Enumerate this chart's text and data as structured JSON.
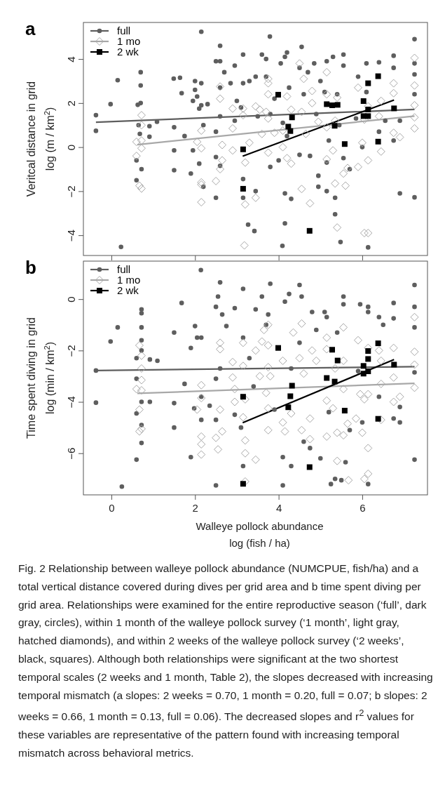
{
  "chart_data": [
    {
      "type": "scatter",
      "ylabel": "Veritcal distance in grid\nlog (m / km$^{2}$)",
      "xlim": [
        -0.67,
        7.56
      ],
      "ylim": [
        -4.92,
        5.66
      ],
      "xticks": [
        0,
        2,
        4,
        6
      ],
      "yticks": [
        -4,
        -2,
        0,
        2,
        4
      ],
      "tick_labels": "y",
      "legend": "top left",
      "annotations": [
        "a"
      ],
      "series": [
        {
          "name": "full",
          "color": "#5e5e5e",
          "marker": "circle",
          "x": [
            -0.37,
            -0.37,
            0.15,
            -0.02,
            0.63,
            0.65,
            0.6,
            0.6,
            0.7,
            0.7,
            0.7,
            0.72,
            0.68,
            0.91,
            0.91,
            1.09,
            1.49,
            1.5,
            1.5,
            1.5,
            1.64,
            1.68,
            1.75,
            1.9,
            1.95,
            1.95,
            2.0,
            2.0,
            2.05,
            2.1,
            2.1,
            2.15,
            2.15,
            2.15,
            2.2,
            2.2,
            2.3,
            2.5,
            2.5,
            2.5,
            2.5,
            2.6,
            2.6,
            2.6,
            2.6,
            2.6,
            2.7,
            2.85,
            2.95,
            2.95,
            3.0,
            3.1,
            3.15,
            3.15,
            3.15,
            3.15,
            3.27,
            3.3,
            3.45,
            3.45,
            3.42,
            3.5,
            3.6,
            3.7,
            3.7,
            3.79,
            3.8,
            3.8,
            3.9,
            4.0,
            4.05,
            4.1,
            4.15,
            4.15,
            4.2,
            4.2,
            4.25,
            4.3,
            4.15,
            4.5,
            4.5,
            4.55,
            4.6,
            4.7,
            4.75,
            4.85,
            4.9,
            4.95,
            4.95,
            5.0,
            5.1,
            5.15,
            5.15,
            5.15,
            5.2,
            5.3,
            5.35,
            5.35,
            5.4,
            5.45,
            5.55,
            5.55,
            5.55,
            5.7,
            5.85,
            5.9,
            6.0,
            6.1,
            6.1,
            6.14,
            5.48,
            4.09,
            0.23,
            6.4,
            6.4,
            6.55,
            6.75,
            6.75,
            6.75,
            6.9,
            6.9,
            7.25,
            7.25,
            7.25,
            7.25,
            7.25
          ],
          "values": [
            1.45,
            0.74,
            3.04,
            1.95,
            1.92,
            1.0,
            -0.6,
            -1.5,
            3.4,
            2.8,
            2.0,
            -1.0,
            0.6,
            0.95,
            0.47,
            1.15,
            3.11,
            0.9,
            -0.15,
            -1.05,
            3.15,
            2.45,
            0.5,
            -1.2,
            2.1,
            -0.15,
            3.0,
            2.6,
            2.3,
            1.75,
            -0.75,
            5.24,
            2.9,
            1.9,
            1.0,
            -1.8,
            1.95,
            3.9,
            -2.3,
            0.7,
            -0.45,
            4.6,
            3.9,
            2.7,
            1.4,
            -0.85,
            3.4,
            2.9,
            3.7,
            1.2,
            2.1,
            1.8,
            4.2,
            2.9,
            -1.45,
            -2.3,
            -3.52,
            3.0,
            3.2,
            -2.0,
            -3.81,
            1.4,
            4.2,
            3.2,
            4.0,
            5.02,
            1.5,
            -0.9,
            2.2,
            -0.6,
            3.8,
            1.1,
            4.1,
            -2.1,
            4.3,
            0.5,
            2.7,
            -2.35,
            -3.46,
            3.6,
            -0.35,
            4.55,
            2.4,
            3.4,
            -0.4,
            3.8,
            1.5,
            -1.3,
            -1.8,
            3.0,
            2.5,
            3.9,
            -0.7,
            -2.0,
            0.3,
            4.1,
            -2.3,
            -3.05,
            2.4,
            1.0,
            4.2,
            3.7,
            -0.5,
            -1.0,
            1.3,
            3.2,
            0.0,
            3.8,
            2.5,
            -4.55,
            -4.31,
            -4.48,
            -4.53,
            3.85,
            0.7,
            1.2,
            4.15,
            3.6,
            0.3,
            1.2,
            -2.1,
            4.9,
            3.8,
            3.3,
            2.4,
            -2.28
          ]
        },
        {
          "name": "1 mo",
          "color": "#a8a8a8",
          "marker": "diamond",
          "x": [
            0.6,
            0.6,
            0.72,
            0.72,
            0.72,
            0.72,
            0.67,
            0.72,
            2.05,
            2.15,
            2.15,
            2.15,
            2.15,
            2.15,
            2.5,
            2.6,
            2.6,
            2.65,
            2.65,
            2.6,
            2.9,
            2.9,
            2.9,
            3.15,
            3.15,
            3.2,
            3.2,
            3.18,
            3.3,
            3.45,
            3.45,
            3.55,
            3.6,
            3.7,
            3.75,
            3.75,
            3.75,
            3.75,
            3.75,
            3.9,
            4.1,
            4.1,
            4.2,
            4.2,
            4.3,
            4.3,
            4.5,
            4.55,
            4.55,
            4.6,
            4.65,
            4.75,
            4.8,
            4.8,
            4.95,
            5.15,
            5.15,
            5.15,
            5.15,
            5.3,
            5.35,
            5.35,
            5.4,
            5.4,
            5.55,
            5.6,
            5.65,
            5.9,
            5.9,
            6.0,
            6.05,
            6.14,
            6.14,
            6.05,
            6.14,
            6.4,
            6.45,
            6.45,
            6.75,
            6.75,
            6.75,
            6.9,
            7.25,
            7.25,
            7.25,
            7.25,
            7.25
          ],
          "values": [
            0.24,
            -0.4,
            1.45,
            1.0,
            0.3,
            -0.05,
            -1.75,
            -1.88,
            0.24,
            0.75,
            -0.05,
            -1.6,
            -1.7,
            -2.5,
            -1.54,
            2.75,
            2.2,
            0.1,
            -0.6,
            -1.0,
            1.75,
            0.85,
            -0.15,
            1.75,
            1.45,
            -0.7,
            -2.6,
            -4.46,
            0.2,
            1.85,
            -2.3,
            1.7,
            0.6,
            1.6,
            2.9,
            3.1,
            2.4,
            1.3,
            -0.25,
            0.65,
            0.0,
            0.75,
            2.3,
            -0.5,
            1.7,
            -0.75,
            3.8,
            1.6,
            -1.9,
            3.1,
            0.6,
            -2.55,
            2.55,
            2.0,
            1.15,
            3.4,
            2.4,
            0.9,
            -0.55,
            -0.15,
            1.2,
            -1.65,
            -3.65,
            2.25,
            -1.2,
            -1.75,
            -0.95,
            -0.9,
            2.7,
            0.2,
            1.25,
            -0.6,
            1.85,
            -3.9,
            -3.9,
            1.4,
            2.1,
            -0.2,
            2.9,
            2.45,
            0.65,
            0.45,
            4.05,
            2.8,
            1.9,
            1.35,
            0.85
          ]
        },
        {
          "name": "2 wk",
          "color": "#000000",
          "marker": "square",
          "x": [
            3.15,
            3.15,
            3.99,
            4.23,
            4.28,
            4.32,
            4.74,
            5.15,
            5.28,
            5.41,
            5.34,
            5.58,
            6.03,
            6.14,
            6.14,
            6.03,
            6.14,
            6.38,
            6.38,
            6.76
          ],
          "values": [
            -0.1,
            -1.89,
            2.38,
            0.93,
            0.73,
            1.35,
            -3.8,
            1.95,
            1.9,
            1.92,
            0.97,
            0.14,
            2.09,
            2.9,
            1.71,
            1.41,
            1.41,
            3.22,
            0.25,
            1.76
          ]
        },
        {
          "type": "line",
          "color": "#5e5e5e",
          "x": [
            -0.37,
            7.25
          ],
          "values": [
            1.13,
            1.71
          ]
        },
        {
          "type": "line",
          "color": "#a8a8a8",
          "x": [
            0.62,
            7.25
          ],
          "values": [
            0.11,
            1.41
          ]
        },
        {
          "type": "line",
          "color": "#000000",
          "x": [
            3.14,
            6.76
          ],
          "values": [
            -0.41,
            2.14
          ]
        }
      ]
    },
    {
      "type": "scatter",
      "xlabel": "Walleye pollock abundance\nlog (fish / ha)",
      "ylabel": "Time spent diving in grid\nlog (min / km$^{2}$)",
      "xlim": [
        -0.67,
        7.56
      ],
      "ylim": [
        -7.62,
        1.48
      ],
      "xticks": [
        0,
        2,
        4,
        6
      ],
      "yticks": [
        -6,
        -4,
        -2,
        0
      ],
      "legend": "top left",
      "annotations": [
        "b",
        "Fig. 2  Relationship between walleye pollock abundance (NUMCPUE, fish/ha) and a total vertical distance covered during dives per grid area and b time spent diving per grid area. Relationships were examined for the entire reproductive season (‘full’, dark gray, circles), within 1 month of the walleye pollock survey (‘1 month’, light gray, hatched diamonds), and within 2 weeks of the walleye pollock survey (‘2 weeks’, black, squares). Although both relationships were significant at the two shortest temporal scales (2 weeks and 1 month, Table 2), the slopes decreased with increasing temporal mismatch (a slopes: 2 weeks = 0.70, 1 month = 0.20, full = 0.07; b slopes: 2 weeks = 0.66, 1 month = 0.13, full = 0.06). The decreased slopes and r$^{2}$ values for these variables are representative of the pattern found with increasing temporal mismatch across behavioral metrics."
      ],
      "series": [
        {
          "name": "full",
          "color": "#5e5e5e",
          "marker": "circle",
          "x": [
            -0.37,
            -0.37,
            0.15,
            -0.02,
            0.25,
            0.6,
            0.6,
            0.6,
            0.6,
            0.72,
            0.72,
            0.72,
            0.72,
            0.72,
            0.72,
            0.72,
            0.72,
            0.92,
            0.92,
            1.1,
            1.5,
            1.5,
            1.5,
            1.68,
            1.75,
            1.9,
            1.9,
            1.98,
            2.0,
            2.05,
            2.14,
            2.15,
            2.15,
            2.15,
            2.35,
            2.5,
            2.5,
            2.5,
            2.5,
            2.55,
            2.6,
            2.6,
            2.65,
            2.75,
            2.95,
            2.95,
            3.1,
            3.15,
            3.15,
            3.15,
            3.3,
            3.4,
            3.45,
            3.6,
            3.7,
            3.75,
            3.8,
            3.9,
            4.1,
            4.1,
            4.15,
            4.25,
            4.3,
            4.3,
            4.5,
            4.5,
            4.55,
            4.6,
            4.75,
            4.8,
            4.9,
            5.0,
            5.1,
            5.15,
            5.2,
            5.25,
            5.35,
            5.4,
            5.5,
            5.55,
            5.55,
            5.6,
            5.7,
            5.9,
            5.95,
            6.0,
            6.14,
            6.14,
            6.14,
            6.4,
            6.4,
            6.5,
            6.75,
            6.75,
            6.75,
            6.9,
            6.9,
            7.25,
            7.25,
            7.25,
            7.25,
            7.25
          ],
          "values": [
            -2.78,
            -4.03,
            -1.1,
            -1.65,
            -7.3,
            -2.3,
            -3.1,
            -4.45,
            -6.25,
            -0.4,
            -0.55,
            -1.1,
            -1.6,
            -2.0,
            -4.0,
            -4.9,
            -5.6,
            -2.35,
            -4.0,
            -2.4,
            -1.3,
            -4.05,
            -5.0,
            -0.15,
            -3.3,
            -1.9,
            -6.15,
            -4.25,
            -1.05,
            -1.5,
            1.13,
            -1.5,
            -3.8,
            -4.7,
            -4.15,
            -0.3,
            -3.1,
            -7.25,
            -4.7,
            0.1,
            0.65,
            -2.7,
            -0.6,
            -1.05,
            -0.35,
            -4.5,
            -5.0,
            0.4,
            -1.5,
            -6.5,
            -2.3,
            -3.4,
            -0.4,
            0.1,
            -1.0,
            -0.6,
            0.6,
            -4.3,
            -7.25,
            -6.15,
            -0.1,
            0.2,
            -2.7,
            -6.5,
            0.55,
            -1.7,
            0.1,
            -5.55,
            -5.8,
            -0.5,
            -1.2,
            -6.2,
            -0.5,
            -0.7,
            -4.4,
            -7.2,
            -7.0,
            -1.3,
            -7.05,
            0.1,
            -0.2,
            -6.35,
            -5.1,
            -2.8,
            -0.2,
            -4.8,
            -0.3,
            -0.5,
            -7.2,
            -0.7,
            -3.8,
            -1.0,
            -0.15,
            -0.75,
            -4.65,
            -4.8,
            -4.2,
            0.55,
            -0.3,
            -1.1,
            -2.85,
            -6.25
          ]
        },
        {
          "name": "1 mo",
          "color": "#a8a8a8",
          "marker": "diamond",
          "x": [
            0.6,
            0.67,
            0.72,
            0.72,
            0.72,
            0.72,
            0.67,
            0.67,
            0.72,
            2.05,
            2.15,
            2.15,
            2.15,
            2.15,
            2.15,
            2.5,
            2.6,
            2.6,
            2.6,
            2.55,
            2.65,
            2.9,
            2.9,
            2.95,
            2.95,
            3.15,
            3.15,
            3.15,
            3.2,
            3.2,
            3.2,
            3.2,
            3.45,
            3.45,
            3.55,
            3.6,
            3.65,
            3.7,
            3.75,
            3.75,
            3.75,
            3.75,
            3.75,
            3.8,
            4.1,
            4.1,
            4.15,
            4.3,
            4.35,
            4.5,
            4.55,
            4.55,
            4.6,
            4.75,
            4.75,
            4.8,
            4.9,
            5.15,
            5.15,
            5.15,
            5.15,
            5.3,
            5.35,
            5.4,
            5.4,
            5.55,
            5.55,
            5.55,
            5.55,
            5.65,
            5.85,
            5.9,
            5.95,
            6.0,
            6.05,
            6.14,
            6.14,
            6.14,
            6.05,
            6.14,
            6.4,
            6.45,
            6.45,
            6.45,
            6.75,
            6.75,
            6.75,
            6.9,
            7.25,
            7.25,
            7.25,
            7.25,
            5.67
          ],
          "values": [
            -3.5,
            -1.8,
            -2.2,
            -2.7,
            -3.15,
            -3.55,
            -4.3,
            -5.15,
            -5.05,
            -4.3,
            -3.35,
            -3.85,
            -5.35,
            -5.65,
            -6.05,
            -5.4,
            -1.7,
            -1.95,
            -4.3,
            -5.85,
            -5.15,
            -2.45,
            -3.05,
            -3.5,
            -4.0,
            -1.7,
            -2.6,
            -4.6,
            -3.9,
            -5.5,
            -6.0,
            -7.1,
            -6.25,
            -2.0,
            -3.0,
            -1.65,
            -1.2,
            -3.65,
            -1.8,
            -2.65,
            -4.25,
            -5.1,
            -1.0,
            -3.0,
            -2.4,
            -4.8,
            -5.15,
            -4.45,
            -1.3,
            -2.3,
            -0.95,
            -5.1,
            -2.9,
            -4.65,
            -5.45,
            -2.0,
            -2.4,
            -1.5,
            -1.95,
            -3.95,
            -5.35,
            -4.25,
            -2.7,
            -5.2,
            -6.3,
            -1.1,
            -2.4,
            -3.5,
            -5.3,
            -4.85,
            -4.65,
            -1.6,
            -3.7,
            -5.2,
            -3.9,
            -1.9,
            -3.7,
            -5.8,
            -7.0,
            -6.8,
            -2.0,
            -2.4,
            -3.3,
            -4.7,
            -1.9,
            -3.05,
            -4.0,
            -3.8,
            -0.7,
            -2.05,
            -2.55,
            -3.45,
            -7.05
          ]
        },
        {
          "name": "2 wk",
          "color": "#000000",
          "marker": "square",
          "x": [
            3.15,
            3.15,
            3.99,
            4.23,
            4.28,
            4.32,
            4.74,
            5.15,
            5.28,
            5.41,
            5.34,
            5.58,
            6.03,
            6.14,
            6.14,
            6.03,
            6.14,
            6.38,
            6.38,
            6.76
          ],
          "values": [
            -3.8,
            -7.19,
            -1.9,
            -4.21,
            -3.78,
            -3.37,
            -6.54,
            -3.07,
            -1.97,
            -2.39,
            -3.21,
            -4.34,
            -2.6,
            -2.02,
            -2.33,
            -2.9,
            -2.81,
            -1.72,
            -4.66,
            -2.55
          ]
        },
        {
          "type": "line",
          "color": "#5e5e5e",
          "x": [
            -0.37,
            7.25
          ],
          "values": [
            -2.78,
            -2.63
          ]
        },
        {
          "type": "line",
          "color": "#a8a8a8",
          "x": [
            0.62,
            7.25
          ],
          "values": [
            -3.67,
            -3.28
          ]
        },
        {
          "type": "line",
          "color": "#000000",
          "x": [
            3.14,
            6.76
          ],
          "values": [
            -4.81,
            -2.35
          ]
        }
      ]
    }
  ]
}
